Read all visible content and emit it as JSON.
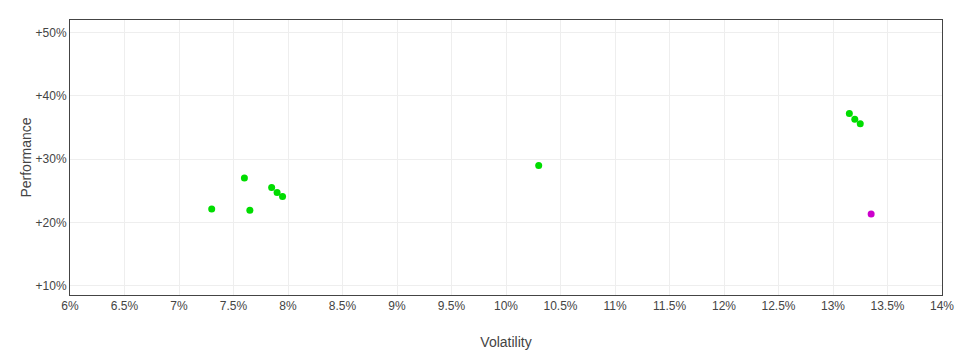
{
  "chart_data": {
    "type": "scatter",
    "xlabel": "Volatility",
    "ylabel": "Performance",
    "xlim": [
      0.06,
      0.14
    ],
    "ylim": [
      0.085,
      0.52
    ],
    "xticks": [
      {
        "value": 0.06,
        "label": "6%"
      },
      {
        "value": 0.065,
        "label": "6.5%"
      },
      {
        "value": 0.07,
        "label": "7%"
      },
      {
        "value": 0.075,
        "label": "7.5%"
      },
      {
        "value": 0.08,
        "label": "8%"
      },
      {
        "value": 0.085,
        "label": "8.5%"
      },
      {
        "value": 0.09,
        "label": "9%"
      },
      {
        "value": 0.095,
        "label": "9.5%"
      },
      {
        "value": 0.1,
        "label": "10%"
      },
      {
        "value": 0.105,
        "label": "10.5%"
      },
      {
        "value": 0.11,
        "label": "11%"
      },
      {
        "value": 0.115,
        "label": "11.5%"
      },
      {
        "value": 0.12,
        "label": "12%"
      },
      {
        "value": 0.125,
        "label": "12.5%"
      },
      {
        "value": 0.13,
        "label": "13%"
      },
      {
        "value": 0.135,
        "label": "13.5%"
      },
      {
        "value": 0.14,
        "label": "14%"
      }
    ],
    "yticks": [
      {
        "value": 0.1,
        "label": "+10%"
      },
      {
        "value": 0.2,
        "label": "+20%"
      },
      {
        "value": 0.3,
        "label": "+30%"
      },
      {
        "value": 0.4,
        "label": "+40%"
      },
      {
        "value": 0.5,
        "label": "+50%"
      }
    ],
    "grid": true,
    "series": [
      {
        "color": "#00dd00",
        "x": [
          0.076,
          0.0785,
          0.079,
          0.0795,
          0.073,
          0.0765,
          0.103,
          0.1315,
          0.132,
          0.1325
        ],
        "values": [
          0.27,
          0.255,
          0.247,
          0.241,
          0.221,
          0.219,
          0.29,
          0.372,
          0.363,
          0.356
        ]
      },
      {
        "color": "#cc00cc",
        "x": [
          0.1335
        ],
        "values": [
          0.213
        ]
      }
    ]
  }
}
